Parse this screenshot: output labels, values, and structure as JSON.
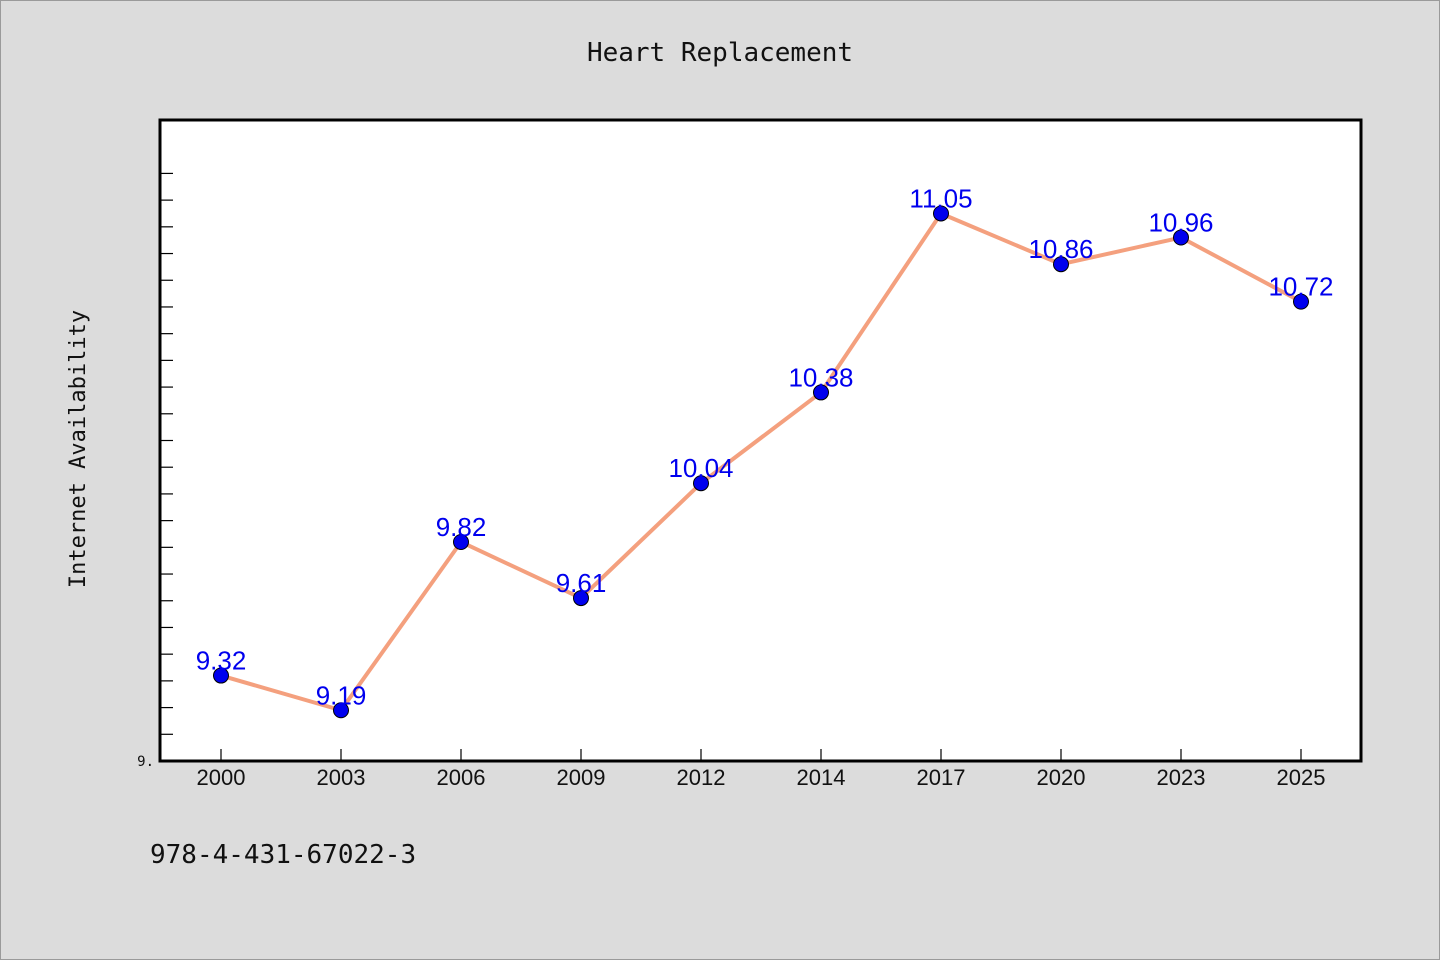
{
  "chart_data": {
    "type": "line",
    "title": "Heart Replacement",
    "xlabel": "",
    "ylabel": "Internet Availability",
    "categories": [
      "2000",
      "2003",
      "2006",
      "2009",
      "2012",
      "2014",
      "2017",
      "2020",
      "2023",
      "2025"
    ],
    "series": [
      {
        "values": [
          9.32,
          9.19,
          9.82,
          9.61,
          10.04,
          10.38,
          11.05,
          10.86,
          10.96,
          10.72
        ],
        "data_labels": [
          "9.32",
          "9.19",
          "9.82",
          "9.61",
          "10.04",
          "10.38",
          "11.05",
          "10.86",
          "10.96",
          "10.72"
        ]
      }
    ],
    "ylim": [
      9.0,
      11.4
    ],
    "y_tick_labels": [
      "9."
    ],
    "y_minor_tick_count": 23,
    "grid": false,
    "legend": "none",
    "colors": {
      "line": "#f4a07e",
      "marker": "#0000ee",
      "label": "#0000ee",
      "plot_background": "#ffffff",
      "page_background": "#dcdcdc"
    }
  },
  "footer": {
    "text": "978-4-431-67022-3"
  }
}
